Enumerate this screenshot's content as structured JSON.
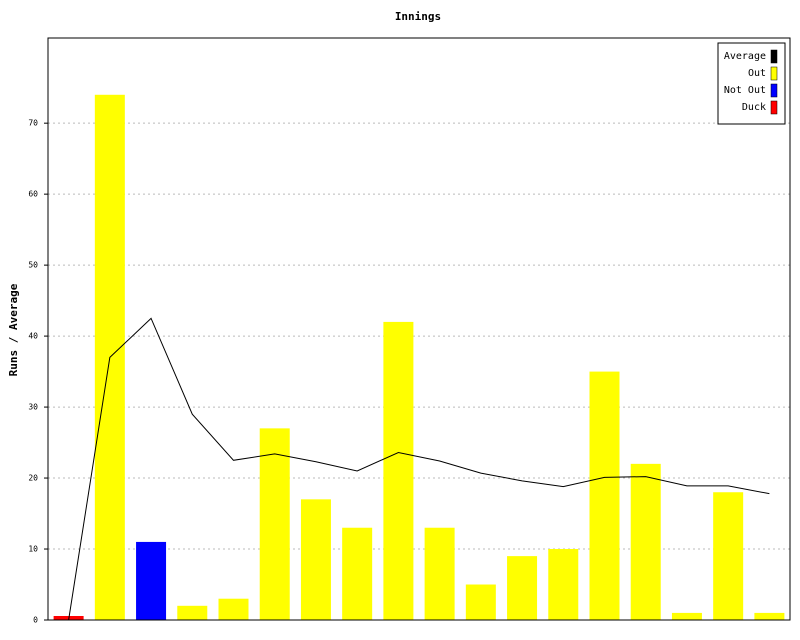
{
  "chart_data": {
    "type": "bar",
    "title": "Innings",
    "ylabel": "Runs / Average",
    "ylim": [
      0,
      82
    ],
    "yticks": [
      0,
      10,
      20,
      30,
      40,
      50,
      60,
      70
    ],
    "grid": true,
    "legend": "top-right",
    "series": [
      {
        "name": "Average",
        "color": "#000000",
        "type": "line",
        "values": [
          0,
          37,
          42.5,
          29,
          22.5,
          23.4,
          22.3,
          21,
          23.6,
          22.4,
          20.7,
          19.6,
          18.8,
          20.1,
          20.2,
          18.9,
          18.9,
          17.8
        ]
      },
      {
        "name": "Out",
        "color": "#ffff00",
        "values": [
          null,
          74,
          null,
          2,
          3,
          27,
          17,
          13,
          42,
          13,
          5,
          9,
          10,
          35,
          22,
          1,
          18,
          1
        ]
      },
      {
        "name": "Not Out",
        "color": "#0000ff",
        "values": [
          null,
          null,
          11,
          null,
          null,
          null,
          null,
          null,
          null,
          null,
          null,
          null,
          null,
          null,
          null,
          null,
          null,
          null
        ]
      },
      {
        "name": "Duck",
        "color": "#ff0000",
        "values": [
          0,
          null,
          null,
          null,
          null,
          null,
          null,
          null,
          null,
          null,
          null,
          null,
          null,
          null,
          null,
          null,
          null,
          null
        ]
      }
    ]
  }
}
